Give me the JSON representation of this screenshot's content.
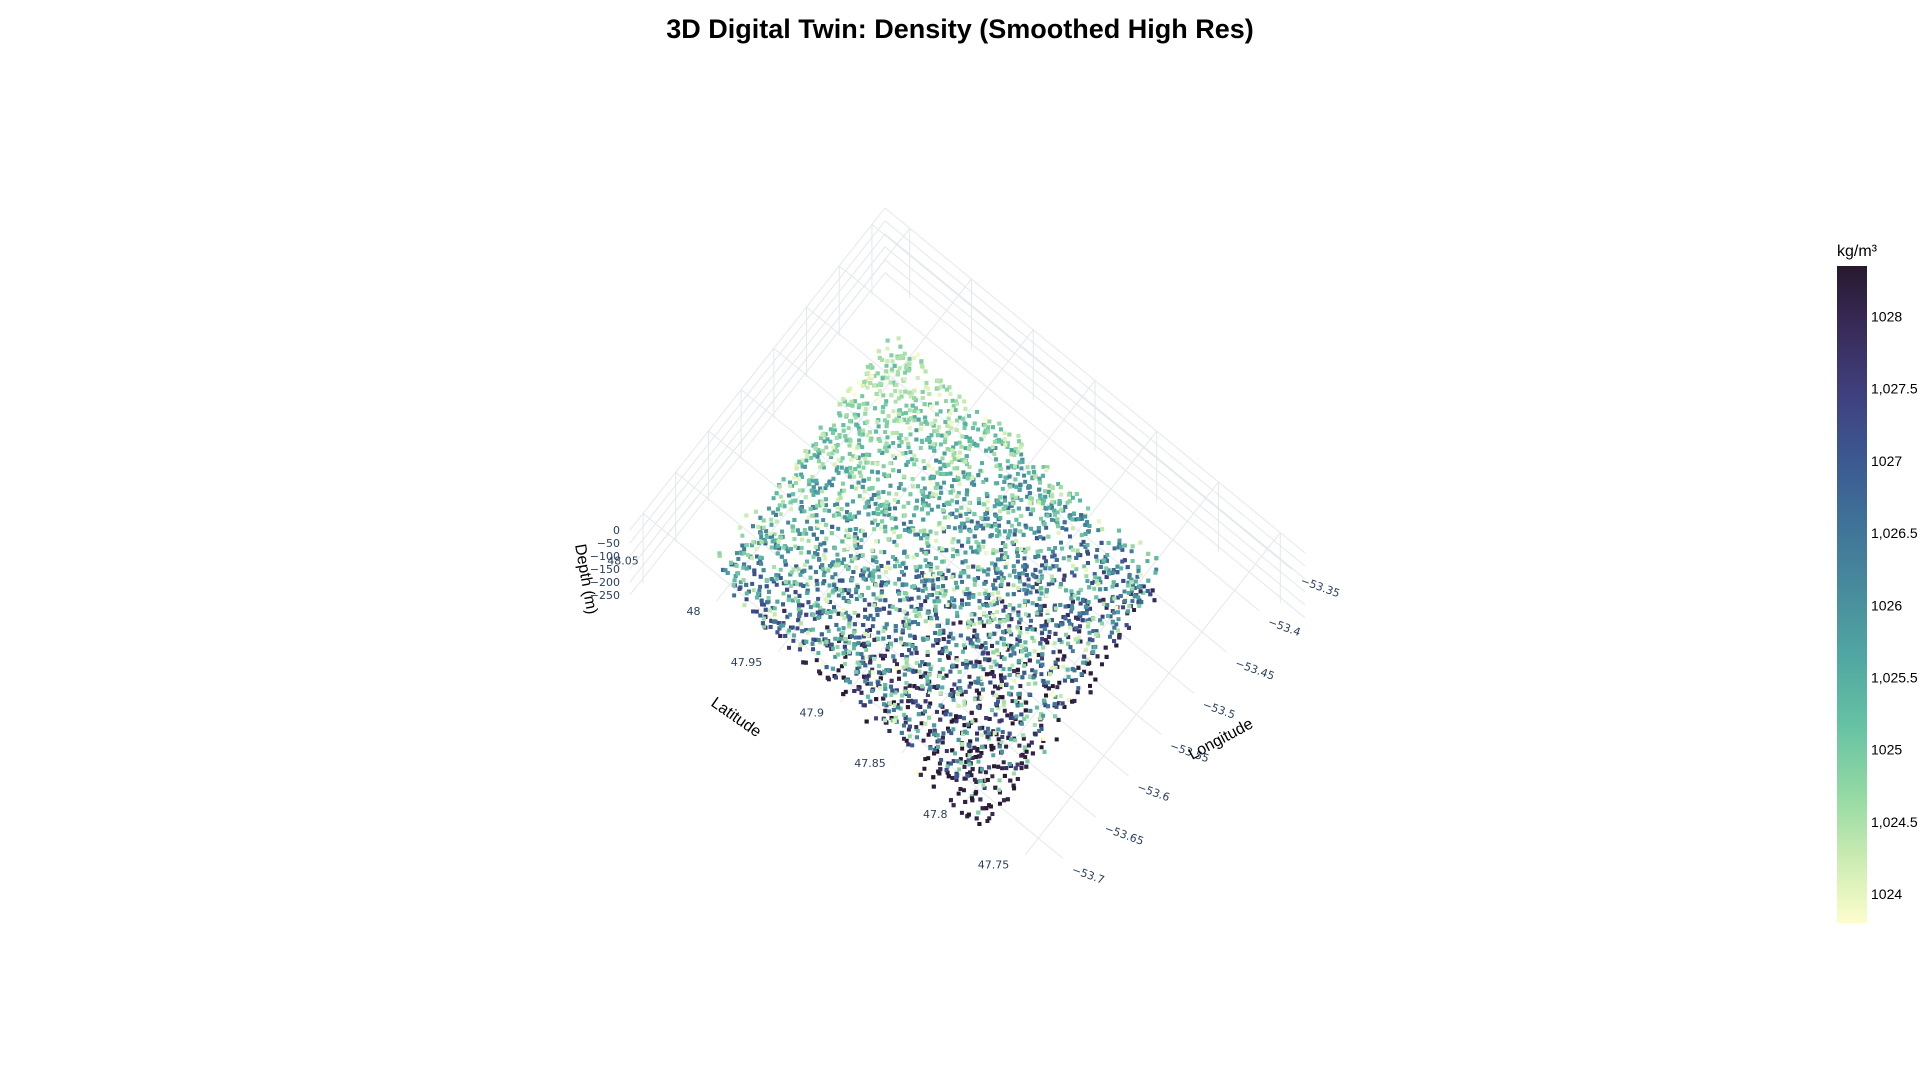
{
  "chart_data": {
    "type": "scatter3d",
    "title": "3D Digital Twin: Density (Smoothed High Res)",
    "xlabel": "Longitude",
    "ylabel": "Latitude",
    "zlabel": "Depth (m)",
    "x_ticks": [
      "−53.7",
      "−53.65",
      "−53.6",
      "−53.55",
      "−53.5",
      "−53.45",
      "−53.4",
      "−53.35"
    ],
    "x_tick_values": [
      -53.7,
      -53.65,
      -53.6,
      -53.55,
      -53.5,
      -53.45,
      -53.4,
      -53.35
    ],
    "y_ticks": [
      "47.75",
      "47.8",
      "47.85",
      "47.9",
      "47.95",
      "48",
      "48.05"
    ],
    "y_tick_values": [
      47.75,
      47.8,
      47.85,
      47.9,
      47.95,
      48,
      48.05
    ],
    "z_ticks": [
      "0",
      "−50",
      "−100",
      "−150",
      "−200",
      "−250"
    ],
    "z_tick_values": [
      0,
      -50,
      -100,
      -150,
      -200,
      -250
    ],
    "xlim": [
      -53.72,
      -53.33
    ],
    "ylim": [
      47.73,
      48.07
    ],
    "zlim": [
      -270,
      0
    ],
    "colorbar": {
      "title": "kg/m³",
      "ticks": [
        "1024",
        "1,024.5",
        "1025",
        "1,025.5",
        "1026",
        "1,026.5",
        "1027",
        "1,027.5",
        "1028"
      ],
      "tick_values": [
        1024,
        1024.5,
        1025,
        1025.5,
        1026,
        1026.5,
        1027,
        1027.5,
        1028
      ],
      "range": [
        1023.8,
        1028.35
      ],
      "colorscale": [
        "#fdfdcc",
        "#c9ebb1",
        "#91d8a3",
        "#66c2a3",
        "#51a8a2",
        "#488d9d",
        "#407498",
        "#3b5a92",
        "#3f4180",
        "#392c5b",
        "#28192f"
      ]
    },
    "series": [
      {
        "surface_density": 1023.9,
        "deep_density": 1028.2,
        "points_description_note": ""
      }
    ],
    "grid": true
  }
}
